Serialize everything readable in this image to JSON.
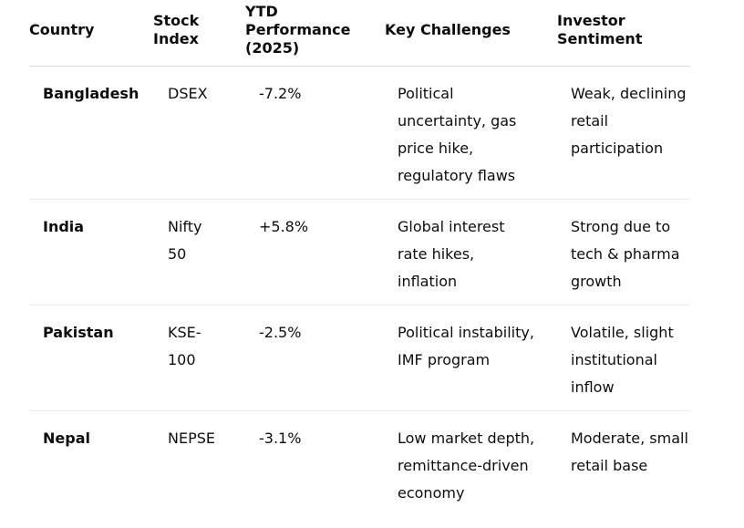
{
  "table": {
    "headers": {
      "country": "Country",
      "index": "Stock\nIndex",
      "ytd": "YTD\nPerformance\n(2025)",
      "challenges": "Key Challenges",
      "sentiment": "Investor\nSentiment"
    },
    "rows": [
      {
        "country": "Bangladesh",
        "index": "DSEX",
        "ytd": "-7.2%",
        "challenges": "Political uncertainty, gas price hike, regulatory flaws",
        "sentiment": "Weak, declining retail participation"
      },
      {
        "country": "India",
        "index": "Nifty 50",
        "ytd": "+5.8%",
        "challenges": "Global interest rate hikes, inflation",
        "sentiment": "Strong due to tech & pharma growth"
      },
      {
        "country": "Pakistan",
        "index": "KSE-100",
        "ytd": "-2.5%",
        "challenges": "Political instability, IMF program",
        "sentiment": "Volatile, slight institutional inflow"
      },
      {
        "country": "Nepal",
        "index": "NEPSE",
        "ytd": "-3.1%",
        "challenges": "Low market depth, remittance-driven economy",
        "sentiment": "Moderate, small retail base"
      }
    ]
  }
}
